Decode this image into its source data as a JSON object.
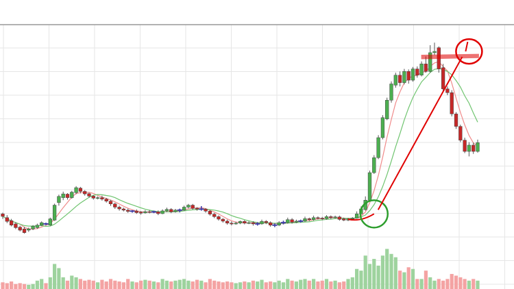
{
  "chart_data": {
    "type": "candlestick",
    "title": "",
    "xlabel": "",
    "ylabel": "",
    "grid": true,
    "legend": "none",
    "ylim": [
      0,
      100
    ],
    "volume_ylim": [
      0,
      100
    ],
    "colors": {
      "up": "#4caf50",
      "down": "#c62828",
      "up_volume": "#9ed39e",
      "down_volume": "#f4a3a3",
      "doji": "#3f3fa8",
      "ma_fast": "#f08a8a",
      "ma_slow": "#6fc46f",
      "annotation": "#e00000",
      "annotation_green": "#2e9e2e",
      "grid": "#e6e6e6",
      "top_line": "#999999"
    },
    "candles": [
      [
        29.5,
        28.5,
        27.5,
        30.0,
        8
      ],
      [
        28.0,
        26.5,
        25.8,
        29.0,
        7
      ],
      [
        26.8,
        25.0,
        24.5,
        27.5,
        9
      ],
      [
        25.5,
        24.0,
        23.4,
        26.2,
        6
      ],
      [
        24.2,
        23.0,
        22.5,
        24.8,
        7
      ],
      [
        23.5,
        22.0,
        21.6,
        24.3,
        6
      ],
      [
        23.0,
        23.5,
        22.3,
        24.0,
        5
      ],
      [
        23.5,
        24.6,
        23.0,
        25.0,
        6
      ],
      [
        24.0,
        25.0,
        23.5,
        25.6,
        10
      ],
      [
        25.0,
        26.0,
        24.6,
        26.5,
        12
      ],
      [
        25.6,
        25.5,
        25.0,
        26.0,
        7
      ],
      [
        25.0,
        27.5,
        24.7,
        28.0,
        14
      ],
      [
        27.0,
        33.0,
        26.7,
        33.6,
        30
      ],
      [
        34.0,
        36.5,
        32.8,
        37.2,
        25
      ],
      [
        36.0,
        37.5,
        35.0,
        38.4,
        14
      ],
      [
        37.4,
        36.0,
        35.2,
        37.8,
        10
      ],
      [
        36.0,
        38.2,
        35.6,
        38.7,
        16
      ],
      [
        38.0,
        40.0,
        37.4,
        40.6,
        14
      ],
      [
        39.8,
        38.5,
        37.7,
        40.3,
        12
      ],
      [
        38.5,
        37.5,
        36.8,
        39.0,
        10
      ],
      [
        37.6,
        36.6,
        36.0,
        38.0,
        11
      ],
      [
        36.6,
        35.8,
        35.2,
        37.0,
        10
      ],
      [
        35.8,
        36.0,
        35.3,
        36.5,
        8
      ],
      [
        36.0,
        35.4,
        34.8,
        36.8,
        11
      ],
      [
        35.4,
        34.6,
        34.0,
        35.9,
        9
      ],
      [
        34.6,
        33.5,
        32.7,
        35.1,
        12
      ],
      [
        33.5,
        32.2,
        31.5,
        34.0,
        10
      ],
      [
        32.2,
        31.5,
        30.8,
        32.8,
        9
      ],
      [
        31.5,
        31.0,
        30.5,
        32.0,
        8
      ],
      [
        31.0,
        30.5,
        29.9,
        31.6,
        12
      ],
      [
        30.5,
        30.6,
        30.0,
        31.0,
        9
      ],
      [
        30.6,
        30.0,
        29.5,
        31.3,
        8
      ],
      [
        30.2,
        29.8,
        29.2,
        30.6,
        10
      ],
      [
        29.9,
        30.4,
        29.6,
        31.0,
        11
      ],
      [
        30.4,
        30.2,
        29.7,
        31.1,
        10
      ],
      [
        30.3,
        30.3,
        29.8,
        30.8,
        9
      ],
      [
        30.3,
        29.6,
        29.0,
        30.9,
        8
      ],
      [
        29.6,
        30.7,
        29.4,
        31.3,
        12
      ],
      [
        30.7,
        31.3,
        30.2,
        32.0,
        10
      ],
      [
        31.3,
        30.3,
        29.8,
        31.8,
        9
      ],
      [
        30.4,
        31.0,
        30.0,
        31.5,
        10
      ],
      [
        31.0,
        31.0,
        30.1,
        31.6,
        11
      ],
      [
        31.0,
        32.2,
        30.7,
        32.8,
        12
      ],
      [
        32.2,
        33.0,
        31.7,
        33.5,
        10
      ],
      [
        33.0,
        31.7,
        31.2,
        33.5,
        9
      ],
      [
        31.8,
        31.4,
        30.8,
        32.2,
        11
      ],
      [
        31.4,
        31.4,
        30.8,
        32.6,
        10
      ],
      [
        31.4,
        30.6,
        30.0,
        31.8,
        8
      ],
      [
        30.6,
        29.4,
        28.8,
        31.0,
        12
      ],
      [
        29.4,
        28.4,
        27.8,
        29.9,
        10
      ],
      [
        28.4,
        27.4,
        26.8,
        28.9,
        9
      ],
      [
        27.4,
        26.6,
        26.0,
        27.8,
        8
      ],
      [
        26.6,
        25.8,
        25.2,
        27.2,
        9
      ],
      [
        25.8,
        25.5,
        24.9,
        26.5,
        8
      ],
      [
        25.5,
        25.8,
        25.2,
        26.4,
        7
      ],
      [
        25.8,
        26.5,
        25.4,
        26.8,
        8
      ],
      [
        26.5,
        25.8,
        25.3,
        27.0,
        9
      ],
      [
        25.8,
        26.0,
        25.4,
        26.5,
        8
      ],
      [
        26.0,
        25.5,
        24.8,
        26.6,
        10
      ],
      [
        25.5,
        25.5,
        24.8,
        26.2,
        9
      ],
      [
        25.5,
        26.5,
        25.2,
        27.2,
        11
      ],
      [
        26.5,
        26.0,
        25.4,
        27.0,
        8
      ],
      [
        26.0,
        25.0,
        24.4,
        26.5,
        9
      ],
      [
        25.0,
        25.0,
        24.2,
        25.7,
        8
      ],
      [
        25.0,
        26.0,
        24.6,
        26.6,
        10
      ],
      [
        26.0,
        26.0,
        25.3,
        26.8,
        8
      ],
      [
        26.0,
        27.2,
        25.6,
        28.0,
        12
      ],
      [
        27.2,
        26.2,
        25.6,
        27.8,
        10
      ],
      [
        26.2,
        26.6,
        25.8,
        27.2,
        9
      ],
      [
        26.6,
        26.6,
        26.0,
        27.2,
        11
      ],
      [
        26.6,
        27.6,
        26.3,
        28.4,
        12
      ],
      [
        27.6,
        27.2,
        26.6,
        28.0,
        10
      ],
      [
        27.2,
        28.0,
        26.8,
        28.8,
        12
      ],
      [
        28.0,
        27.8,
        27.3,
        28.5,
        9
      ],
      [
        27.8,
        27.6,
        27.0,
        28.3,
        10
      ],
      [
        27.6,
        28.4,
        27.2,
        29.0,
        12
      ],
      [
        28.4,
        28.0,
        27.4,
        28.9,
        9
      ],
      [
        28.0,
        28.3,
        27.6,
        28.8,
        10
      ],
      [
        28.3,
        27.3,
        26.8,
        28.8,
        8
      ],
      [
        27.5,
        27.0,
        26.6,
        28.0,
        9
      ],
      [
        27.0,
        27.5,
        26.6,
        27.9,
        12
      ],
      [
        27.5,
        27.8,
        27.2,
        28.2,
        14
      ],
      [
        27.8,
        29.5,
        27.6,
        30.5,
        24
      ],
      [
        29.5,
        31.5,
        29.2,
        32.5,
        22
      ],
      [
        31.2,
        35.0,
        30.8,
        36.5,
        40
      ],
      [
        35.0,
        46.0,
        34.6,
        46.8,
        30
      ],
      [
        46.0,
        52.0,
        45.5,
        53.0,
        36
      ],
      [
        52.0,
        60.0,
        51.4,
        61.0,
        28
      ],
      [
        60.0,
        68.0,
        59.3,
        69.0,
        40
      ],
      [
        67.5,
        75.0,
        67.0,
        76.0,
        48
      ],
      [
        75.0,
        81.5,
        74.0,
        82.5,
        42
      ],
      [
        81.0,
        85.0,
        80.0,
        86.0,
        38
      ],
      [
        85.0,
        82.0,
        80.5,
        86.5,
        22
      ],
      [
        82.0,
        86.5,
        81.3,
        87.5,
        20
      ],
      [
        86.5,
        83.0,
        81.6,
        87.3,
        26
      ],
      [
        83.0,
        87.5,
        82.4,
        88.3,
        24
      ],
      [
        87.5,
        85.0,
        84.0,
        88.5,
        12
      ],
      [
        85.0,
        89.5,
        84.5,
        90.5,
        12
      ],
      [
        89.5,
        86.5,
        86.0,
        92.5,
        22
      ],
      [
        86.5,
        94.0,
        86.0,
        97.0,
        14
      ],
      [
        94.0,
        94.5,
        93.0,
        98.0,
        10
      ],
      [
        96.0,
        87.5,
        86.0,
        96.5,
        12
      ],
      [
        88.0,
        79.5,
        78.5,
        89.5,
        10
      ],
      [
        79.5,
        78.0,
        77.0,
        80.5,
        12
      ],
      [
        78.0,
        69.5,
        68.5,
        79.0,
        18
      ],
      [
        69.5,
        64.5,
        63.5,
        70.2,
        16
      ],
      [
        64.5,
        59.0,
        58.2,
        65.2,
        14
      ],
      [
        59.0,
        54.5,
        53.8,
        60.0,
        12
      ],
      [
        54.5,
        57.0,
        52.5,
        58.2,
        10
      ],
      [
        57.0,
        54.5,
        53.5,
        58.0,
        12
      ],
      [
        54.5,
        58.0,
        54.0,
        59.2,
        10
      ]
    ]
  }
}
